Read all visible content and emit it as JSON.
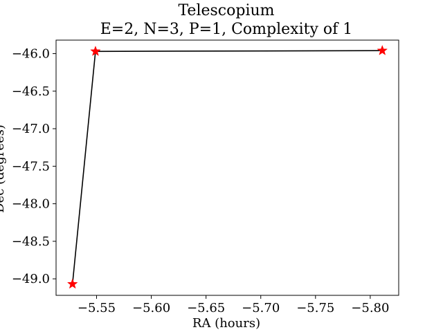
{
  "chart_data": {
    "type": "line",
    "title": "Telescopium",
    "subtitle": "E=2, N=3, P=1, Complexity of 1",
    "xlabel": "RA (hours)",
    "ylabel": "Dec (degrees)",
    "x_axis_inverted": true,
    "xlim": [
      -5.513,
      -5.826
    ],
    "ylim": [
      -49.22,
      -45.82
    ],
    "x_ticks": [
      -5.55,
      -5.6,
      -5.65,
      -5.7,
      -5.75,
      -5.8
    ],
    "x_tick_labels": [
      "−5.55",
      "−5.60",
      "−5.65",
      "−5.70",
      "−5.75",
      "−5.80"
    ],
    "y_ticks": [
      -46.0,
      -46.5,
      -47.0,
      -47.5,
      -48.0,
      -48.5,
      -49.0
    ],
    "y_tick_labels": [
      "−46.0",
      "−46.5",
      "−47.0",
      "−47.5",
      "−48.0",
      "−48.5",
      "−49.0"
    ],
    "grid": false,
    "series": [
      {
        "x": [
          -5.528,
          -5.549,
          -5.811
        ],
        "y": [
          -49.07,
          -45.97,
          -45.96
        ],
        "line_color": "#000000",
        "marker": "star",
        "marker_color": "#ff0000"
      }
    ]
  }
}
